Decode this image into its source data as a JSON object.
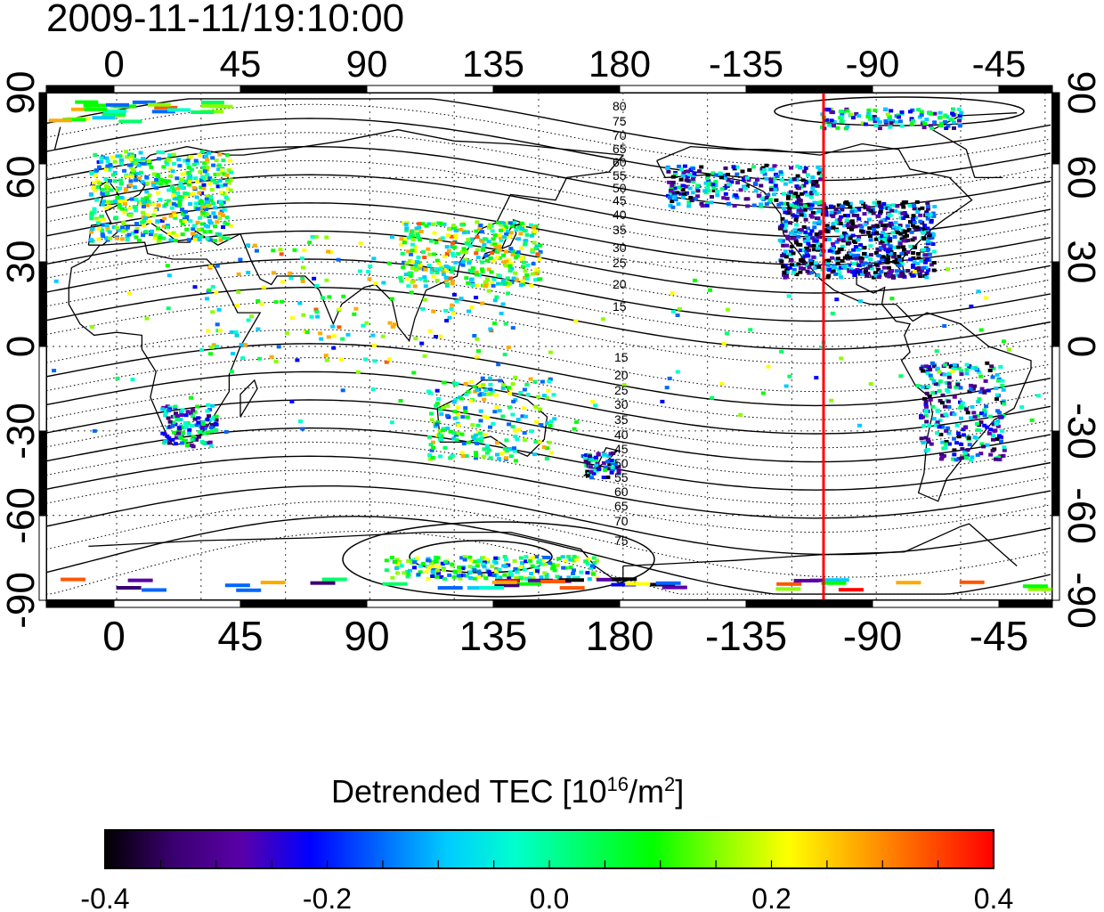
{
  "title": "2009-11-11/19:10:00",
  "map": {
    "top_lon_labels": [
      "0",
      "45",
      "90",
      "135",
      "180",
      "-135",
      "-90",
      "-45"
    ],
    "bottom_lon_labels": [
      "0",
      "45",
      "90",
      "135",
      "180",
      "-135",
      "-90",
      "-45"
    ],
    "left_lat_labels": [
      "90",
      "60",
      "30",
      "0",
      "-30",
      "-60",
      "-90"
    ],
    "right_lat_labels": [
      "90",
      "60",
      "30",
      "0",
      "-30",
      "-60",
      "-90"
    ],
    "contour_labels_north": [
      "80",
      "75",
      "70",
      "65",
      "60",
      "55",
      "50",
      "45",
      "40",
      "35",
      "30",
      "25",
      "20",
      "15"
    ],
    "contour_labels_south": [
      "15",
      "20",
      "25",
      "30",
      "35",
      "40",
      "45",
      "50",
      "55",
      "60",
      "65",
      "70",
      "75"
    ],
    "marker_line": {
      "longitude": -112,
      "color": "#ff0000"
    }
  },
  "colorbar": {
    "title_main": "Detrended TEC  [10",
    "title_exp1": "16",
    "title_mid": "/m",
    "title_exp2": "2",
    "title_end": "]",
    "tick_labels": [
      "-0.4",
      "-0.2",
      "0.0",
      "0.2",
      "0.4"
    ],
    "min": -0.4,
    "max": 0.4,
    "colors": [
      "#000000",
      "#3a0070",
      "#5a00a8",
      "#0000ff",
      "#0066ff",
      "#00ccff",
      "#00ffcc",
      "#00ff66",
      "#00ff00",
      "#88ff00",
      "#ffff00",
      "#ffaa00",
      "#ff5500",
      "#ff0000"
    ]
  }
}
